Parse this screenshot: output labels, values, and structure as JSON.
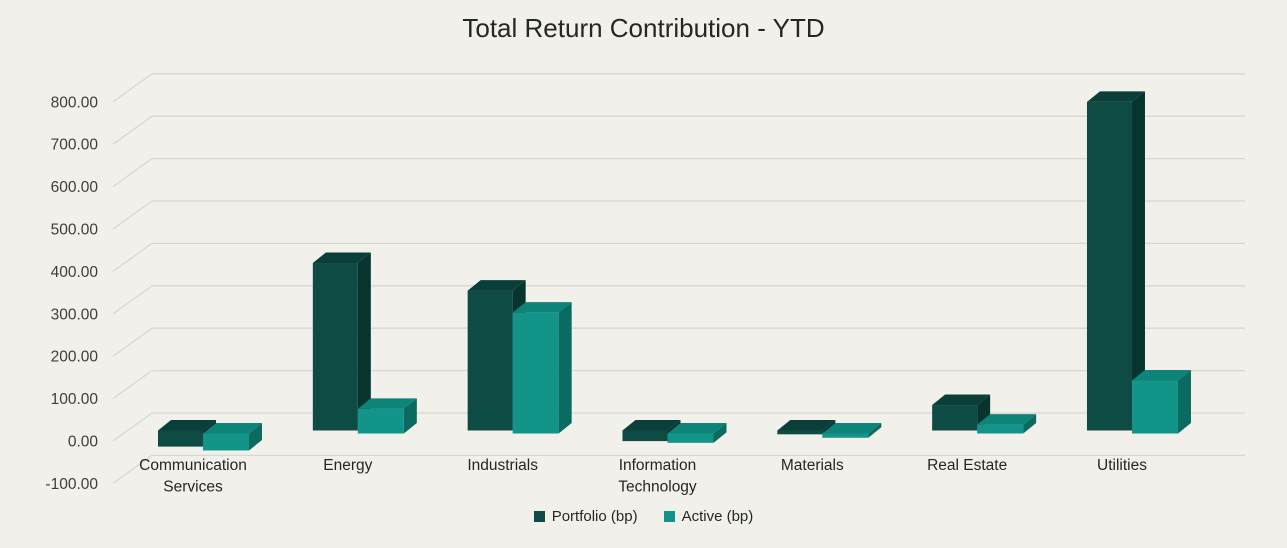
{
  "title": "Total Return Contribution - YTD",
  "chart_data": {
    "type": "bar",
    "style": "3d-clustered-column",
    "categories": [
      "Communication Services",
      "Energy",
      "Industrials",
      "Information Technology",
      "Materials",
      "Real Estate",
      "Utilities"
    ],
    "series": [
      {
        "name": "Portfolio (bp)",
        "values": [
          -38,
          395,
          330,
          -25,
          -9,
          60,
          775
        ],
        "faces": {
          "front": "#0E4B44",
          "top": "#0A3F39",
          "side": "#083430"
        }
      },
      {
        "name": "Active (bp)",
        "values": [
          -40,
          58,
          285,
          -22,
          -10,
          21,
          125
        ],
        "faces": {
          "front": "#129489",
          "top": "#0E8378",
          "side": "#0B6B61"
        }
      }
    ],
    "ylim": [
      -100,
      800
    ],
    "ytick_step": 100,
    "yticks": [
      "800.00",
      "700.00",
      "600.00",
      "500.00",
      "400.00",
      "300.00",
      "200.00",
      "100.00",
      "0.00",
      "-100.00"
    ],
    "grid": true,
    "legend_position": "bottom"
  },
  "colors": {
    "background": "#F1F0EB",
    "gridline": "#D8D7D2",
    "title_text": "#262626",
    "axis_text": "#3D3D3D",
    "category_text": "#262626"
  }
}
